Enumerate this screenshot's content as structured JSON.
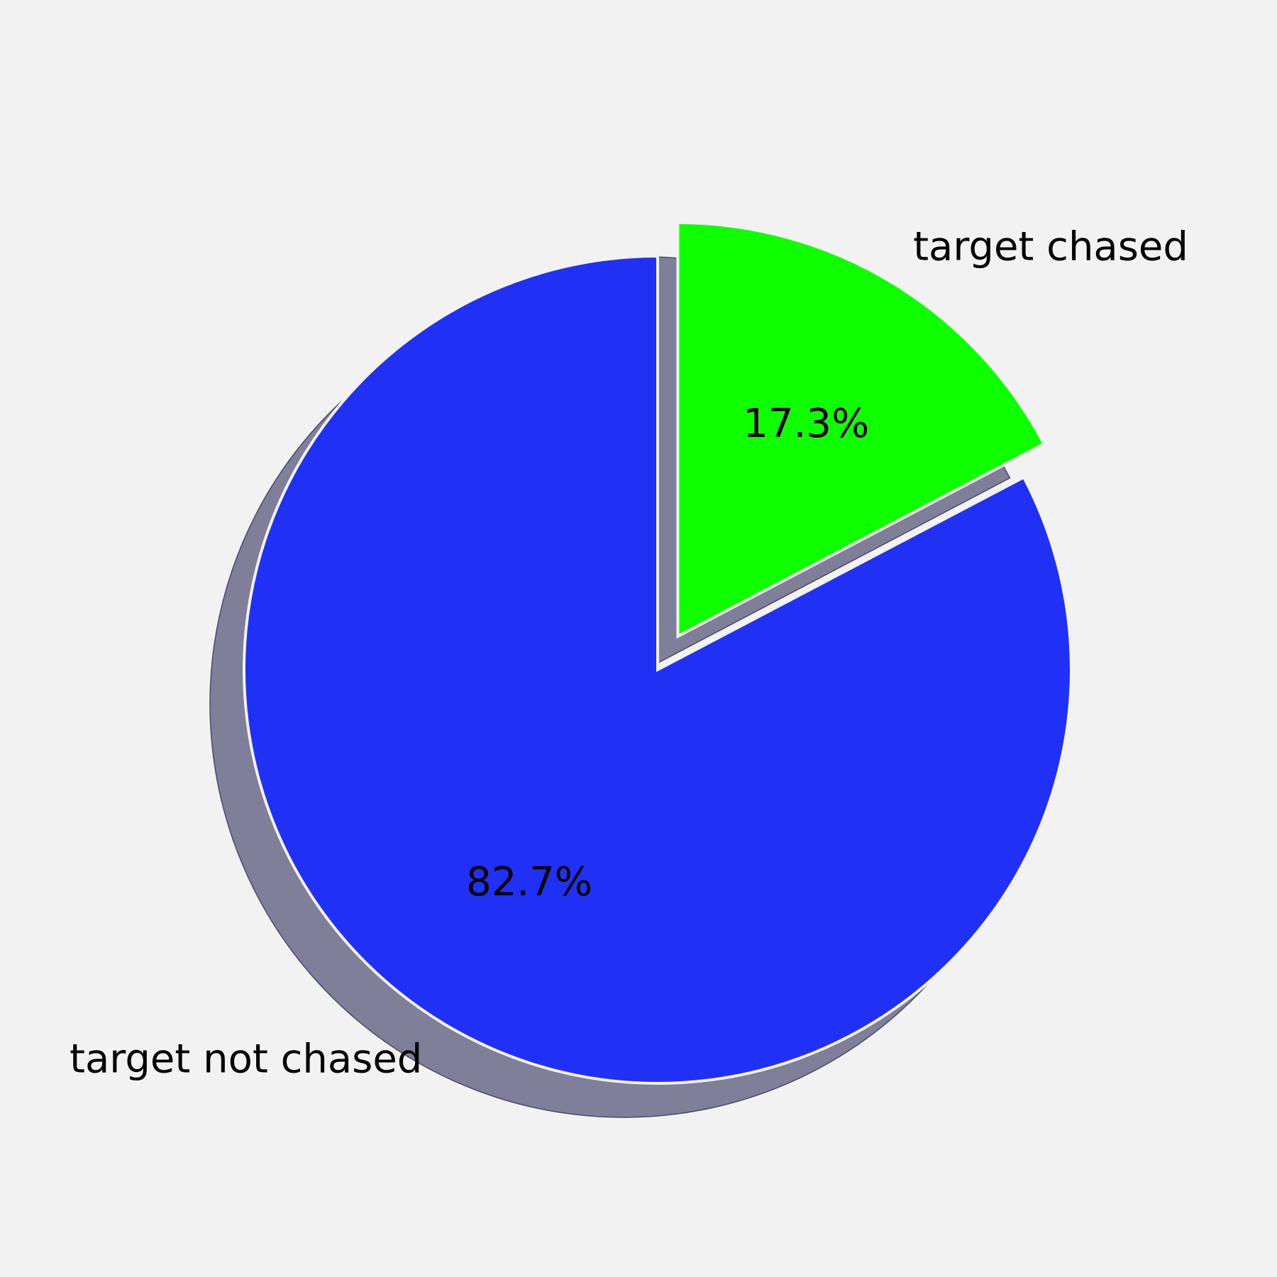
{
  "chart_data": {
    "type": "pie",
    "slices": [
      {
        "label": "target chased",
        "value": 17.3,
        "pct_label": "17.3%",
        "color": "#0fff00",
        "exploded": true
      },
      {
        "label": "target not chased",
        "value": 82.7,
        "pct_label": "82.7%",
        "color": "#2130f5",
        "exploded": false
      }
    ],
    "start_angle_deg": 90,
    "direction": "clockwise",
    "shadow": true,
    "background": "#f2f2f2",
    "shadow_color": "#7f7f9a"
  }
}
